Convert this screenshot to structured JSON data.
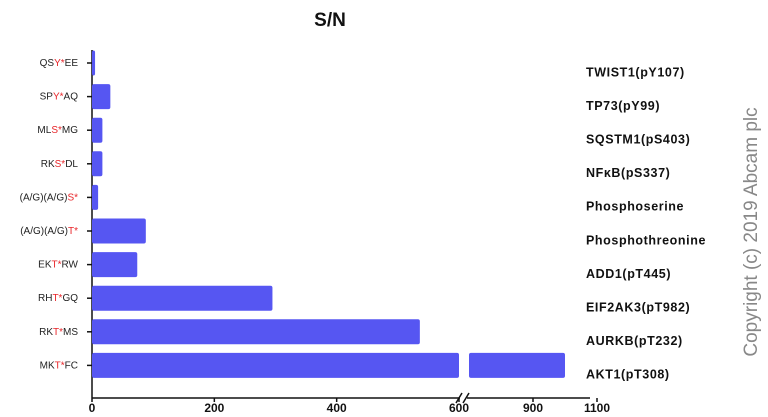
{
  "chart_data": {
    "type": "barh",
    "title": "S/N",
    "categories": [
      [
        "QS",
        "Y*",
        "EE"
      ],
      [
        "SP",
        "Y*",
        "AQ"
      ],
      [
        "ML",
        "S*",
        "MG"
      ],
      [
        "RK",
        "S*",
        "DL"
      ],
      [
        "(A/G)(A/G)",
        "S*"
      ],
      [
        "(A/G)(A/G)",
        "T*"
      ],
      [
        "EK",
        "T*",
        "RW"
      ],
      [
        "RH",
        "T*",
        "GQ"
      ],
      [
        "RK",
        "T*",
        "MS"
      ],
      [
        "MK",
        "T*",
        "FC"
      ]
    ],
    "right_labels": [
      "TWIST1(pY107)",
      "TP73(pY99)",
      "SQSTM1(pS403)",
      "NFκB(pS337)",
      "Phosphoserine",
      "Phosphothreonine",
      "ADD1(pT445)",
      "EIF2AK3(pT982)",
      "AURKB(pT232)",
      "AKT1(pT308)"
    ],
    "values": [
      5,
      30,
      17,
      17,
      10,
      88,
      74,
      295,
      536,
      1000
    ],
    "color": "#5656f2",
    "highlight_color": "#e8262a",
    "xlim": [
      0,
      1100
    ],
    "xticks": [
      0,
      200,
      400,
      600,
      900,
      1100
    ],
    "axis_break": 600,
    "watermark": "Copyright (c) 2019 Abcam plc"
  }
}
